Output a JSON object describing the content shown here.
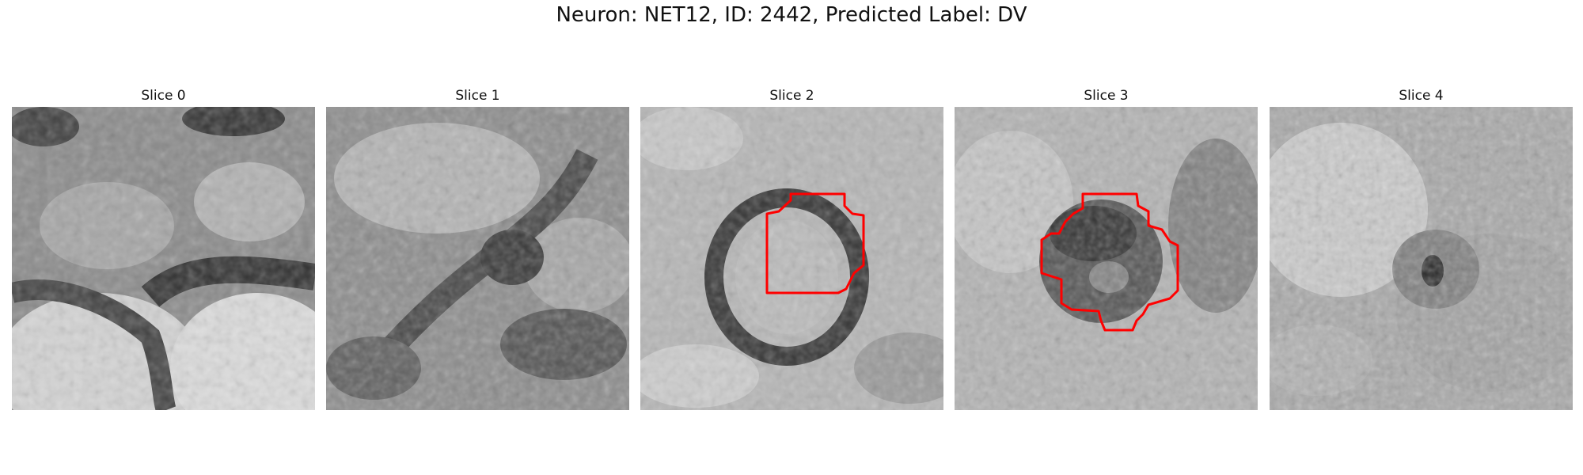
{
  "figure": {
    "title": "Neuron: NET12, ID: 2442, Predicted Label: DV",
    "panels": [
      {
        "title": "Slice 0",
        "has_outline": false
      },
      {
        "title": "Slice 1",
        "has_outline": false
      },
      {
        "title": "Slice 2",
        "has_outline": true
      },
      {
        "title": "Slice 3",
        "has_outline": true
      },
      {
        "title": "Slice 4",
        "has_outline": false
      }
    ],
    "colors": {
      "outline": "#ff0000",
      "background": "#ffffff"
    },
    "colormap": "gray"
  }
}
